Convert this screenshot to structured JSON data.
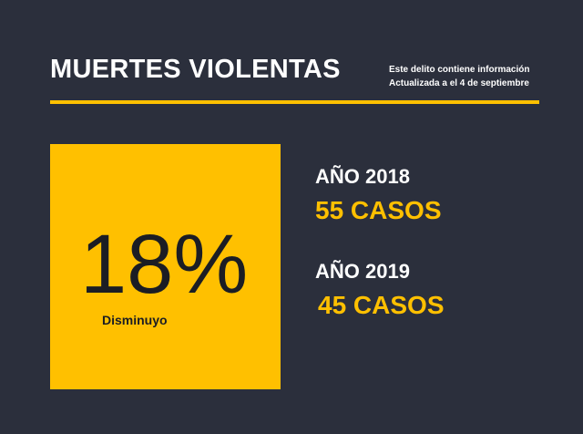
{
  "header": {
    "title": "MUERTES VIOLENTAS",
    "note_line1": "Este delito contiene información",
    "note_line2": "Actualizada a el 4 de septiembre"
  },
  "stat": {
    "value": "18%",
    "label": "Disminuyo"
  },
  "years": [
    {
      "label": "AÑO 2018",
      "cases": "55 CASOS"
    },
    {
      "label": "AÑO 2019",
      "cases": "45 CASOS"
    }
  ],
  "colors": {
    "background": "#2b2f3c",
    "accent": "#ffc000",
    "text": "#ffffff"
  }
}
